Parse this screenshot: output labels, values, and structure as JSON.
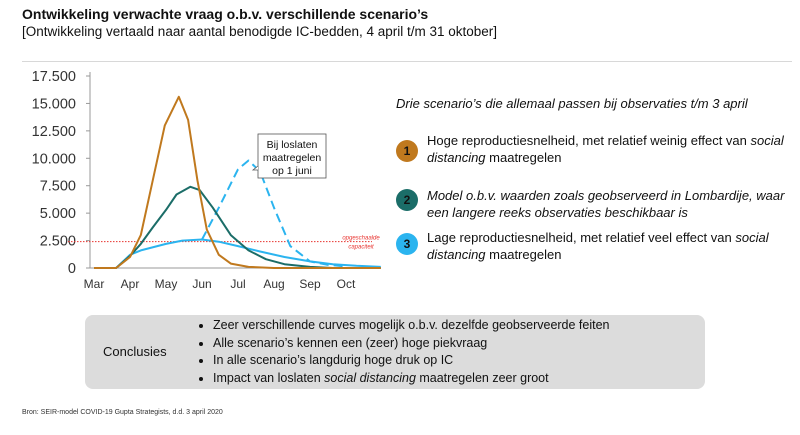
{
  "header": {
    "title": "Ontwikkeling verwachte vraag o.b.v. verschillende scenario’s",
    "subtitle": "[Ontwikkeling vertaald naar aantal benodigde IC-bedden, 4 april t/m 31 oktober]"
  },
  "chart_data": {
    "type": "line",
    "yticks": [
      "17.500",
      "15.000",
      "12.500",
      "10.000",
      "7.500",
      "5.000",
      "2.500",
      "0"
    ],
    "ylim": [
      0,
      17500
    ],
    "xticks": [
      "Mar",
      "Apr",
      "May",
      "Jun",
      "Jul",
      "Aug",
      "Sep",
      "Oct"
    ],
    "xlim": [
      "2020-03-01",
      "2020-10-31"
    ],
    "grid": false,
    "colors": {
      "s1": "#c0791e",
      "s2": "#1b6d68",
      "s3": "#2bb4ef",
      "capacity": "#e8332f"
    },
    "capacity": {
      "value": 2400,
      "label_line1": "opgeschaalde",
      "label_line2": "capaciteit"
    },
    "callout": {
      "lines": [
        "Bij loslaten",
        "maatregelen",
        "op 1 juni"
      ]
    },
    "series": [
      {
        "id": "s1",
        "style": "solid",
        "points": [
          [
            "2020-03-01",
            0
          ],
          [
            "2020-03-20",
            0
          ],
          [
            "2020-04-01",
            1000
          ],
          [
            "2020-04-10",
            3000
          ],
          [
            "2020-04-20",
            8000
          ],
          [
            "2020-04-30",
            13000
          ],
          [
            "2020-05-12",
            15600
          ],
          [
            "2020-05-20",
            13500
          ],
          [
            "2020-05-28",
            8000
          ],
          [
            "2020-06-05",
            3500
          ],
          [
            "2020-06-15",
            1200
          ],
          [
            "2020-06-25",
            400
          ],
          [
            "2020-07-10",
            100
          ],
          [
            "2020-08-01",
            0
          ],
          [
            "2020-10-31",
            0
          ]
        ]
      },
      {
        "id": "s2",
        "style": "solid",
        "points": [
          [
            "2020-03-01",
            0
          ],
          [
            "2020-03-20",
            0
          ],
          [
            "2020-04-01",
            1100
          ],
          [
            "2020-04-10",
            2200
          ],
          [
            "2020-04-20",
            3700
          ],
          [
            "2020-05-01",
            5300
          ],
          [
            "2020-05-10",
            6700
          ],
          [
            "2020-05-22",
            7400
          ],
          [
            "2020-05-30",
            7100
          ],
          [
            "2020-06-10",
            5500
          ],
          [
            "2020-06-25",
            3000
          ],
          [
            "2020-07-10",
            1600
          ],
          [
            "2020-07-25",
            800
          ],
          [
            "2020-08-10",
            350
          ],
          [
            "2020-09-01",
            100
          ],
          [
            "2020-09-20",
            0
          ],
          [
            "2020-10-31",
            0
          ]
        ]
      },
      {
        "id": "s3",
        "style": "solid",
        "points": [
          [
            "2020-03-01",
            0
          ],
          [
            "2020-03-20",
            0
          ],
          [
            "2020-04-01",
            1200
          ],
          [
            "2020-04-10",
            1600
          ],
          [
            "2020-05-01",
            2200
          ],
          [
            "2020-05-15",
            2500
          ],
          [
            "2020-06-01",
            2600
          ],
          [
            "2020-06-15",
            2400
          ],
          [
            "2020-07-01",
            2000
          ],
          [
            "2020-07-20",
            1500
          ],
          [
            "2020-08-10",
            1000
          ],
          [
            "2020-09-01",
            600
          ],
          [
            "2020-09-20",
            350
          ],
          [
            "2020-10-10",
            200
          ],
          [
            "2020-10-31",
            100
          ]
        ]
      },
      {
        "id": "s3",
        "style": "dashed",
        "points": [
          [
            "2020-06-01",
            2600
          ],
          [
            "2020-06-15",
            5500
          ],
          [
            "2020-07-01",
            9000
          ],
          [
            "2020-07-10",
            9800
          ],
          [
            "2020-07-20",
            8800
          ],
          [
            "2020-08-01",
            5500
          ],
          [
            "2020-08-15",
            2000
          ],
          [
            "2020-09-01",
            600
          ],
          [
            "2020-09-15",
            300
          ],
          [
            "2020-10-01",
            150
          ]
        ]
      }
    ]
  },
  "panel": {
    "intro": "Drie scenario’s die allemaal passen bij observaties t/m 3 april",
    "items": [
      {
        "num": "1",
        "color": "#c0791e",
        "parts": [
          {
            "t": "Hoge reproductiesnelheid, met relatief weinig effect van "
          },
          {
            "t": "social distancing"
          },
          {
            "t": " maatregelen"
          }
        ]
      },
      {
        "num": "2",
        "color": "#1b6d68",
        "parts": [
          {
            "t": "Model o.b.v. waarden zoals geobserveerd in Lombardije, waar een langere reeks observaties beschikbaar is"
          }
        ]
      },
      {
        "num": "3",
        "color": "#2bb4ef",
        "parts": [
          {
            "t": "Lage reproductiesnelheid, met relatief veel effect van "
          },
          {
            "t": "social distancing"
          },
          {
            "t": " maatregelen"
          }
        ]
      }
    ]
  },
  "conclusions": {
    "label": "Conclusies",
    "bullets": [
      {
        "a": "Zeer verschillende curves mogelijk o.b.v. dezelfde geobserveerde feiten"
      },
      {
        "a": "Alle scenario’s kennen een (zeer) hoge piekvraag"
      },
      {
        "a": "In alle scenario’s langdurig hoge druk op IC"
      },
      {
        "a": "Impact van loslaten ",
        "b": "social distancing",
        "c": " maatregelen zeer groot"
      }
    ]
  },
  "footer": {
    "source": "Bron: SEIR-model COVID-19 Gupta Strategists, d.d. 3 april 2020"
  }
}
